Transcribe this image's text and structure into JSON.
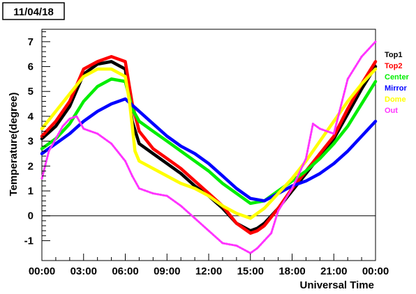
{
  "chart_data": {
    "type": "line",
    "title": "11/04/18",
    "xlabel": "Universal Time",
    "ylabel": "Temperature(degree)",
    "xlim": [
      0,
      24
    ],
    "ylim": [
      -1.8,
      7.5
    ],
    "x_ticks": [
      {
        "value": 0,
        "label": "00:00"
      },
      {
        "value": 3,
        "label": "03:00"
      },
      {
        "value": 6,
        "label": "06:00"
      },
      {
        "value": 9,
        "label": "09:00"
      },
      {
        "value": 12,
        "label": "12:00"
      },
      {
        "value": 15,
        "label": "15:00"
      },
      {
        "value": 18,
        "label": "18:00"
      },
      {
        "value": 21,
        "label": "21:00"
      },
      {
        "value": 24,
        "label": "00:00"
      }
    ],
    "y_ticks": [
      {
        "value": -1,
        "label": "-1"
      },
      {
        "value": 0,
        "label": "0"
      },
      {
        "value": 1,
        "label": "1"
      },
      {
        "value": 2,
        "label": "2"
      },
      {
        "value": 3,
        "label": "3"
      },
      {
        "value": 4,
        "label": "4"
      },
      {
        "value": 5,
        "label": "5"
      },
      {
        "value": 6,
        "label": "6"
      },
      {
        "value": 7,
        "label": "7"
      }
    ],
    "reference_line_y": 0,
    "legend_position": "right",
    "series": [
      {
        "name": "Top1",
        "color": "#000000",
        "x": [
          0,
          1,
          2,
          3,
          4,
          5,
          6,
          6.5,
          7,
          8,
          9,
          10,
          11,
          12,
          13,
          14,
          15,
          15.5,
          16,
          17,
          18,
          19,
          20,
          21,
          22,
          23,
          24
        ],
        "y": [
          3.1,
          3.6,
          4.4,
          5.7,
          6.1,
          6.2,
          5.9,
          3.8,
          2.9,
          2.5,
          2.1,
          1.7,
          1.2,
          0.8,
          0.3,
          -0.3,
          -0.6,
          -0.5,
          -0.3,
          0.3,
          1.0,
          1.7,
          2.4,
          3.1,
          4.1,
          5.1,
          6.0
        ]
      },
      {
        "name": "Top2",
        "color": "#ff0000",
        "x": [
          0,
          1,
          2,
          3,
          4,
          5,
          6,
          6.5,
          7,
          8,
          9,
          10,
          11,
          12,
          13,
          14,
          15,
          15.5,
          16,
          17,
          18,
          19,
          20,
          21,
          22,
          23,
          24
        ],
        "y": [
          3.2,
          3.8,
          4.6,
          5.9,
          6.2,
          6.4,
          6.2,
          4.5,
          3.4,
          2.7,
          2.3,
          1.9,
          1.4,
          0.9,
          0.4,
          -0.3,
          -0.7,
          -0.6,
          -0.4,
          0.3,
          1.1,
          1.8,
          2.5,
          3.2,
          4.3,
          5.3,
          6.2
        ]
      },
      {
        "name": "Center",
        "color": "#00ee00",
        "x": [
          0,
          1,
          2,
          3,
          4,
          5,
          6,
          6.5,
          7,
          8,
          9,
          10,
          11,
          12,
          13,
          14,
          15,
          16,
          17,
          18,
          19,
          20,
          21,
          22,
          23,
          24
        ],
        "y": [
          2.7,
          3.1,
          3.7,
          4.6,
          5.2,
          5.5,
          5.4,
          4.3,
          3.8,
          3.4,
          3.0,
          2.6,
          2.2,
          1.8,
          1.3,
          0.9,
          0.5,
          0.6,
          1.0,
          1.4,
          1.8,
          2.3,
          2.9,
          3.6,
          4.5,
          5.4
        ]
      },
      {
        "name": "Mirror",
        "color": "#0000ff",
        "x": [
          0,
          1,
          2,
          3,
          4,
          5,
          6,
          7,
          8,
          9,
          10,
          11,
          12,
          13,
          14,
          15,
          16,
          17,
          18,
          19,
          20,
          21,
          22,
          23,
          24
        ],
        "y": [
          2.5,
          2.9,
          3.3,
          3.8,
          4.2,
          4.5,
          4.7,
          4.2,
          3.7,
          3.2,
          2.8,
          2.5,
          2.1,
          1.6,
          1.1,
          0.7,
          0.6,
          0.9,
          1.2,
          1.4,
          1.7,
          2.1,
          2.6,
          3.2,
          3.8
        ]
      },
      {
        "name": "Dome",
        "color": "#ffff00",
        "x": [
          0,
          1,
          2,
          3,
          4,
          5,
          6,
          6.3,
          6.7,
          7,
          8,
          9,
          10,
          11,
          12,
          13,
          14,
          15,
          16,
          17,
          18,
          19,
          20,
          21,
          22,
          23,
          24
        ],
        "y": [
          3.5,
          4.2,
          4.9,
          5.6,
          5.9,
          5.9,
          5.6,
          4.6,
          2.6,
          2.2,
          1.9,
          1.6,
          1.3,
          1.1,
          0.8,
          0.4,
          0.1,
          -0.1,
          0.3,
          0.9,
          1.5,
          2.2,
          3.0,
          3.8,
          4.6,
          5.3,
          5.9
        ]
      },
      {
        "name": "Out",
        "color": "#ff33ff",
        "x": [
          0,
          0.5,
          1,
          1.5,
          2,
          2.5,
          3,
          4,
          5,
          6,
          6.5,
          7,
          8,
          9,
          10,
          11,
          12,
          13,
          14,
          15,
          15.5,
          16,
          16.5,
          17,
          18,
          19,
          19.5,
          20,
          21,
          22,
          23,
          24
        ],
        "y": [
          1.5,
          2.6,
          3.1,
          3.6,
          3.9,
          4.0,
          3.5,
          3.3,
          2.9,
          2.2,
          1.6,
          1.1,
          0.9,
          0.8,
          0.4,
          -0.1,
          -0.6,
          -1.1,
          -1.2,
          -1.5,
          -1.3,
          -1.0,
          -0.7,
          0.2,
          1.1,
          2.3,
          3.7,
          3.5,
          3.3,
          5.5,
          6.4,
          7.0
        ]
      }
    ]
  }
}
